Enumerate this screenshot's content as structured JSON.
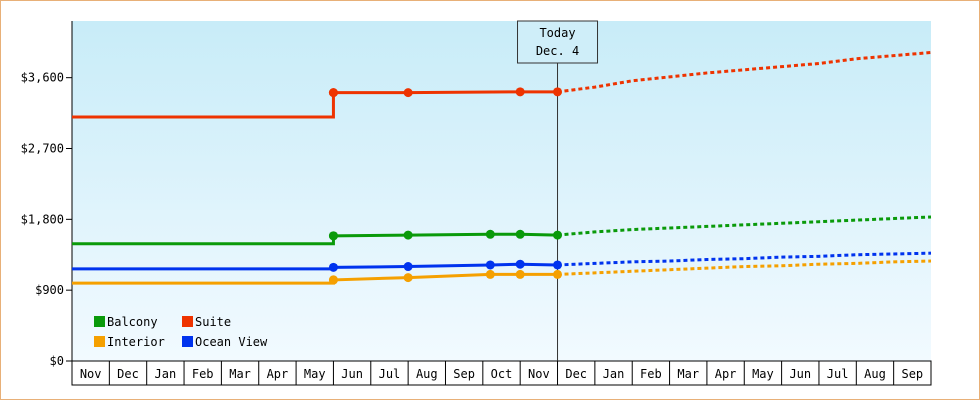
{
  "chart_data": {
    "type": "line",
    "title": "",
    "xlabel": "",
    "ylabel": "",
    "ylim": [
      0,
      4320
    ],
    "y_ticks": [
      {
        "value": 0,
        "label": "$0"
      },
      {
        "value": 900,
        "label": "$900"
      },
      {
        "value": 1800,
        "label": "$1,800"
      },
      {
        "value": 2700,
        "label": "$2,700"
      },
      {
        "value": 3600,
        "label": "$3,600"
      }
    ],
    "months": [
      "Nov",
      "Dec",
      "Jan",
      "Feb",
      "Mar",
      "Apr",
      "May",
      "Jun",
      "Jul",
      "Aug",
      "Sep",
      "Oct",
      "Nov",
      "Dec",
      "Jan",
      "Feb",
      "Mar",
      "Apr",
      "May",
      "Jun",
      "Jul",
      "Aug",
      "Sep"
    ],
    "today_label_1": "Today",
    "today_label_2": "Dec. 4",
    "today_x": 13.0,
    "grid": false,
    "legend_position": "bottom-left",
    "colors": {
      "Balcony": "#0a9a0a",
      "Suite": "#ee3300",
      "Interior": "#f5a000",
      "Ocean View": "#0033ee"
    },
    "background_gradient": [
      "#c8ecf8",
      "#f2faff"
    ],
    "series": [
      {
        "name": "Balcony",
        "color": "#0a9a0a",
        "points": [
          [
            0.0,
            1490
          ],
          [
            7.0,
            1490
          ],
          [
            7.0,
            1590
          ],
          [
            9.0,
            1600
          ],
          [
            11.2,
            1610
          ],
          [
            12.0,
            1610
          ],
          [
            13.0,
            1600
          ]
        ],
        "markers": [
          7.0,
          7.0,
          9.0,
          11.2,
          12.0,
          13.0
        ],
        "forecast": [
          [
            13.0,
            1600
          ],
          [
            14,
            1640
          ],
          [
            15,
            1670
          ],
          [
            16,
            1690
          ],
          [
            17,
            1710
          ],
          [
            18,
            1730
          ],
          [
            19,
            1750
          ],
          [
            20,
            1770
          ],
          [
            21,
            1790
          ],
          [
            22,
            1810
          ],
          [
            23,
            1830
          ]
        ]
      },
      {
        "name": "Suite",
        "color": "#ee3300",
        "points": [
          [
            0.0,
            3100
          ],
          [
            7.0,
            3100
          ],
          [
            7.0,
            3410
          ],
          [
            9.0,
            3410
          ],
          [
            12.0,
            3420
          ],
          [
            13.0,
            3420
          ]
        ],
        "markers": [
          7.0,
          7.0,
          9.0,
          12.0,
          13.0
        ],
        "forecast": [
          [
            13.0,
            3420
          ],
          [
            14,
            3480
          ],
          [
            15,
            3560
          ],
          [
            16,
            3610
          ],
          [
            17,
            3660
          ],
          [
            18,
            3700
          ],
          [
            19,
            3740
          ],
          [
            20,
            3780
          ],
          [
            21,
            3840
          ],
          [
            22,
            3880
          ],
          [
            23,
            3920
          ]
        ]
      },
      {
        "name": "Interior",
        "color": "#f5a000",
        "points": [
          [
            0.0,
            990
          ],
          [
            7.0,
            990
          ],
          [
            7.0,
            1030
          ],
          [
            9.0,
            1060
          ],
          [
            11.2,
            1100
          ],
          [
            12.0,
            1100
          ],
          [
            13.0,
            1100
          ]
        ],
        "markers": [
          7.0,
          7.0,
          9.0,
          11.2,
          12.0,
          13.0
        ],
        "forecast": [
          [
            13.0,
            1100
          ],
          [
            14,
            1120
          ],
          [
            15,
            1140
          ],
          [
            16,
            1160
          ],
          [
            17,
            1180
          ],
          [
            18,
            1200
          ],
          [
            19,
            1210
          ],
          [
            20,
            1230
          ],
          [
            21,
            1240
          ],
          [
            22,
            1260
          ],
          [
            23,
            1270
          ]
        ]
      },
      {
        "name": "Ocean View",
        "color": "#0033ee",
        "points": [
          [
            0.0,
            1170
          ],
          [
            7.0,
            1170
          ],
          [
            7.0,
            1190
          ],
          [
            9.0,
            1200
          ],
          [
            11.2,
            1220
          ],
          [
            12.0,
            1230
          ],
          [
            13.0,
            1220
          ]
        ],
        "markers": [
          7.0,
          9.0,
          11.2,
          12.0,
          13.0
        ],
        "forecast": [
          [
            13.0,
            1220
          ],
          [
            14,
            1240
          ],
          [
            15,
            1260
          ],
          [
            16,
            1270
          ],
          [
            17,
            1290
          ],
          [
            18,
            1300
          ],
          [
            19,
            1320
          ],
          [
            20,
            1330
          ],
          [
            21,
            1350
          ],
          [
            22,
            1360
          ],
          [
            23,
            1370
          ]
        ]
      }
    ],
    "legend": [
      {
        "name": "Balcony",
        "color": "#0a9a0a"
      },
      {
        "name": "Suite",
        "color": "#ee3300"
      },
      {
        "name": "Interior",
        "color": "#f5a000"
      },
      {
        "name": "Ocean View",
        "color": "#0033ee"
      }
    ]
  }
}
